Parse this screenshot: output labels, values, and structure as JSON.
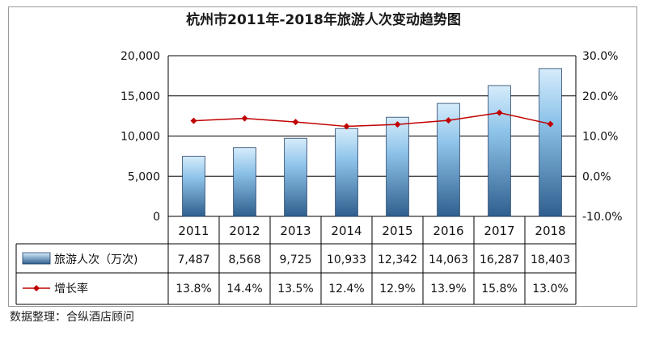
{
  "chart_data": {
    "type": "bar",
    "title": "杭州市2011年-2018年旅游人次变动趋势图",
    "categories": [
      "2011",
      "2012",
      "2013",
      "2014",
      "2015",
      "2016",
      "2017",
      "2018"
    ],
    "series": [
      {
        "name": "旅游人次（万次)",
        "type": "bar",
        "axis": "left",
        "values": [
          7487,
          8568,
          9725,
          10933,
          12342,
          14063,
          16287,
          18403
        ],
        "labels": [
          "7,487",
          "8,568",
          "9,725",
          "10,933",
          "12,342",
          "14,063",
          "16,287",
          "18,403"
        ]
      },
      {
        "name": "增长率",
        "type": "line",
        "axis": "right",
        "values": [
          13.8,
          14.4,
          13.5,
          12.4,
          12.9,
          13.9,
          15.8,
          13.0
        ],
        "labels": [
          "13.8%",
          "14.4%",
          "13.5%",
          "12.4%",
          "12.9%",
          "13.9%",
          "15.8%",
          "13.0%"
        ]
      }
    ],
    "y_left": {
      "min": 0,
      "max": 20000,
      "ticks": [
        0,
        5000,
        10000,
        15000,
        20000
      ],
      "tick_labels": [
        "0",
        "5,000",
        "10,000",
        "15,000",
        "20,000"
      ]
    },
    "y_right": {
      "min": -10,
      "max": 30,
      "ticks": [
        -10,
        0,
        10,
        20,
        30
      ],
      "tick_labels": [
        "-10.0%",
        "0.0%",
        "10.0%",
        "20.0%",
        "30.0%"
      ]
    },
    "grid": true,
    "legend": "data-table",
    "colors": {
      "bar_top": "#d6ecfb",
      "bar_mid": "#8fc4ea",
      "bar_bottom": "#2f5f8e",
      "line": "#c00000",
      "grid": "#000000"
    }
  },
  "source_note": "数据整理：合纵酒店顾问"
}
